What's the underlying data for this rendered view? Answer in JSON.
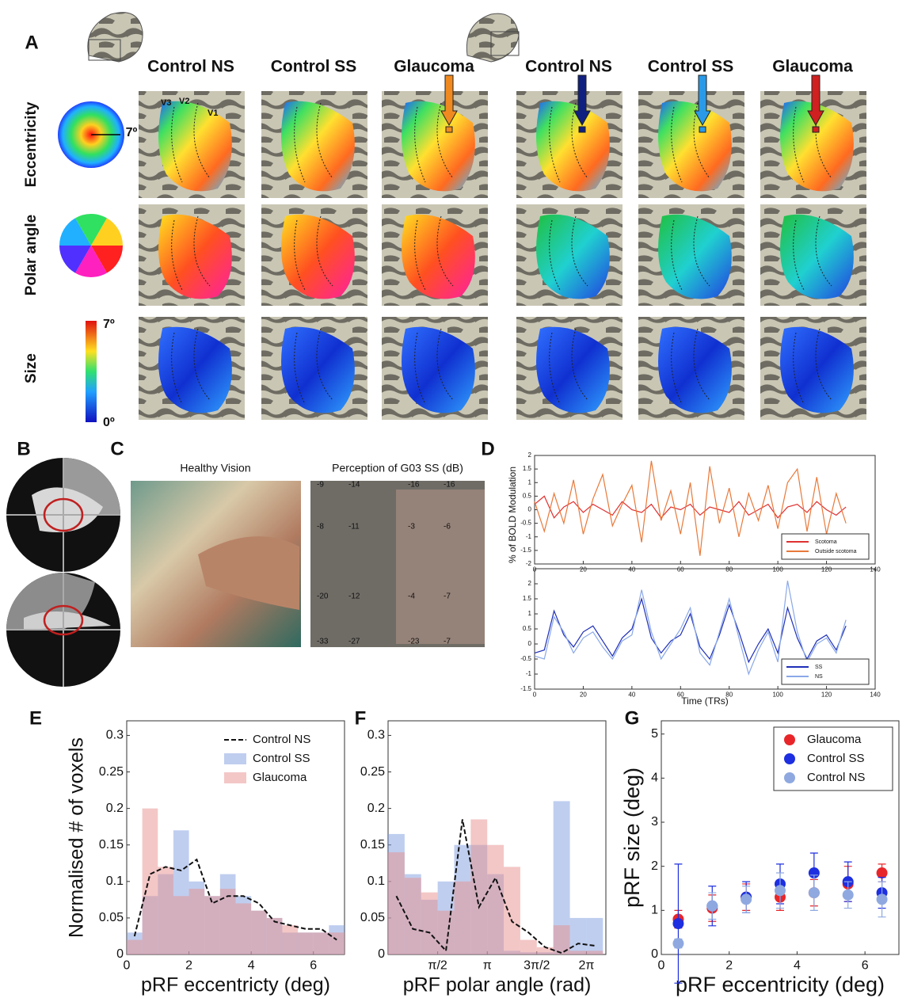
{
  "panel_labels": [
    "A",
    "B",
    "C",
    "D",
    "E",
    "F",
    "G"
  ],
  "panel_a": {
    "columns": [
      "Control NS",
      "Control SS",
      "Glaucoma",
      "Control NS",
      "Control SS",
      "Glaucoma"
    ],
    "rows": [
      "Eccentricity",
      "Polar angle",
      "Size"
    ],
    "eccentricity_max": "7º",
    "size_max": "7º",
    "size_min": "0º",
    "regions": [
      "V3",
      "V2",
      "V1"
    ]
  },
  "panel_c": {
    "titles": [
      "Healthy Vision",
      "Perception of G03 SS (dB)"
    ],
    "db_grid": [
      [
        -9,
        -14,
        -16,
        -16
      ],
      [
        -8,
        -11,
        -3,
        -6
      ],
      [
        -20,
        -12,
        -4,
        -7
      ],
      [
        -33,
        -27,
        -23,
        -7
      ]
    ]
  },
  "chart_data": [
    {
      "type": "line",
      "ylabel": "% of BOLD Modulation",
      "x": [
        0,
        4,
        8,
        12,
        16,
        20,
        24,
        28,
        32,
        36,
        40,
        44,
        48,
        52,
        56,
        60,
        64,
        68,
        72,
        76,
        80,
        84,
        88,
        92,
        96,
        100,
        104,
        108,
        112,
        116,
        120,
        124,
        128
      ],
      "series": [
        {
          "name": "Scotoma",
          "color": "#e03030",
          "values": [
            0.2,
            0.5,
            -0.3,
            0.1,
            0.3,
            -0.1,
            0.2,
            0,
            -0.2,
            0.3,
            0,
            -0.1,
            0.2,
            -0.3,
            0.1,
            0,
            0.2,
            -0.2,
            0.1,
            0,
            -0.1,
            0.3,
            -0.2,
            0,
            0.2,
            -0.3,
            0.1,
            0.2,
            -0.1,
            0.3,
            0,
            -0.2,
            0.1
          ]
        },
        {
          "name": "Outside scotoma",
          "color": "#e8793a",
          "values": [
            0.3,
            -0.8,
            0.6,
            -0.5,
            1.1,
            -0.9,
            0.4,
            1.3,
            -0.6,
            0.2,
            0.9,
            -1.2,
            1.8,
            -0.4,
            0.7,
            -0.9,
            1.0,
            -1.7,
            1.6,
            -0.5,
            0.8,
            -1.0,
            0.6,
            -0.4,
            0.9,
            -0.7,
            1.0,
            1.5,
            -0.8,
            1.2,
            -0.9,
            0.6,
            -0.5
          ]
        }
      ],
      "xlim": [
        0,
        140
      ],
      "xticks": [
        0,
        20,
        40,
        60,
        80,
        100,
        120,
        140
      ],
      "ylim": [
        -2,
        2
      ],
      "yticks": [
        -2,
        -1.5,
        -1,
        -0.5,
        0,
        0.5,
        1,
        1.5,
        2
      ],
      "legend": "lower right"
    },
    {
      "type": "line",
      "xlabel": "Time (TRs)",
      "x": [
        0,
        4,
        8,
        12,
        16,
        20,
        24,
        28,
        32,
        36,
        40,
        44,
        48,
        52,
        56,
        60,
        64,
        68,
        72,
        76,
        80,
        84,
        88,
        92,
        96,
        100,
        104,
        108,
        112,
        116,
        120,
        124,
        128
      ],
      "series": [
        {
          "name": "SS",
          "color": "#1f2fb8",
          "values": [
            -0.3,
            -0.2,
            1.1,
            0.3,
            -0.1,
            0.4,
            0.6,
            0.1,
            -0.4,
            0.2,
            0.5,
            1.5,
            0.2,
            -0.3,
            0.1,
            0.3,
            1.0,
            -0.1,
            -0.5,
            0.3,
            1.3,
            0.4,
            -0.6,
            0,
            0.5,
            -0.3,
            1.2,
            0.2,
            -0.5,
            0.1,
            0.3,
            -0.2,
            0.6
          ]
        },
        {
          "name": "NS",
          "color": "#8aa8e8",
          "values": [
            -0.4,
            -0.5,
            0.9,
            0.4,
            -0.3,
            0.2,
            0.4,
            -0.1,
            -0.5,
            0.1,
            0.3,
            1.8,
            0.4,
            -0.5,
            0,
            0.5,
            1.2,
            -0.3,
            -0.7,
            0.4,
            1.5,
            0.2,
            -1.0,
            -0.2,
            0.4,
            -0.6,
            2.1,
            0.4,
            -0.6,
            0,
            0.2,
            -0.3,
            0.8
          ]
        }
      ],
      "xlim": [
        0,
        140
      ],
      "xticks": [
        0,
        20,
        40,
        60,
        80,
        100,
        120,
        140
      ],
      "ylim": [
        -1.5,
        2.5
      ],
      "yticks": [
        -1.5,
        -1,
        -0.5,
        0,
        0.5,
        1,
        1.5,
        2
      ],
      "legend": "lower right"
    },
    {
      "type": "histogram",
      "xlabel": "pRF eccentricty (deg)",
      "ylabel": "Normalised # of voxels",
      "bins": [
        0,
        0.5,
        1,
        1.5,
        2,
        2.5,
        3,
        3.5,
        4,
        4.5,
        5,
        5.5,
        6,
        6.5,
        7
      ],
      "series": [
        {
          "name": "Control NS",
          "type": "line",
          "dashed": true,
          "color": "#111111",
          "x": [
            0.25,
            0.75,
            1.25,
            1.75,
            2.25,
            2.75,
            3.25,
            3.75,
            4.25,
            4.75,
            5.25,
            5.75,
            6.25,
            6.75
          ],
          "values": [
            0.025,
            0.11,
            0.12,
            0.115,
            0.13,
            0.07,
            0.08,
            0.08,
            0.07,
            0.045,
            0.04,
            0.035,
            0.035,
            0.02
          ]
        },
        {
          "name": "Control SS",
          "color": "#7f9ee0",
          "values": [
            0.03,
            0.08,
            0.11,
            0.17,
            0.1,
            0.08,
            0.11,
            0.08,
            0.06,
            0.05,
            0.03,
            0.03,
            0.03,
            0.04
          ]
        },
        {
          "name": "Glaucoma",
          "color": "#e8908e",
          "values": [
            0.02,
            0.2,
            0.12,
            0.08,
            0.09,
            0.08,
            0.09,
            0.07,
            0.06,
            0.05,
            0.04,
            0.03,
            0.03,
            0.03
          ]
        }
      ],
      "xlim": [
        0,
        7
      ],
      "xticks": [
        0,
        2,
        4,
        6
      ],
      "ylim": [
        0,
        0.32
      ],
      "yticks": [
        0,
        0.05,
        0.1,
        0.15,
        0.2,
        0.25,
        0.3
      ],
      "legend": "upper right"
    },
    {
      "type": "histogram",
      "xlabel": "pRF polar angle (rad)",
      "bins": [
        0,
        0.524,
        1.047,
        1.571,
        2.094,
        2.618,
        3.142,
        3.665,
        4.189,
        4.712,
        5.236,
        5.76,
        6.283,
        6.807
      ],
      "series": [
        {
          "type": "line",
          "dashed": true,
          "color": "#111111",
          "x": [
            0.262,
            0.785,
            1.309,
            1.833,
            2.356,
            2.88,
            3.403,
            3.927,
            4.451,
            4.974,
            5.498,
            6.021,
            6.545
          ],
          "values": [
            0.08,
            0.035,
            0.03,
            0.005,
            0.185,
            0.065,
            0.105,
            0.045,
            0.03,
            0.01,
            0.002,
            0.015,
            0.012
          ]
        },
        {
          "color": "#7f9ee0",
          "values": [
            0.165,
            0.11,
            0.075,
            0.1,
            0.15,
            0.15,
            0.11,
            0.005,
            0.003,
            0.003,
            0.21,
            0.05,
            0.05
          ]
        },
        {
          "color": "#e8908e",
          "values": [
            0.14,
            0.105,
            0.085,
            0.06,
            0.1,
            0.185,
            0.15,
            0.12,
            0.02,
            0.01,
            0.04,
            0.005,
            0.005
          ]
        }
      ],
      "xlim": [
        0,
        6.9
      ],
      "xticks": [
        {
          "value": 1.571,
          "label": "π/2"
        },
        {
          "value": 3.142,
          "label": "π"
        },
        {
          "value": 4.712,
          "label": "3π/2"
        },
        {
          "value": 6.283,
          "label": "2π"
        }
      ],
      "ylim": [
        0,
        0.32
      ],
      "yticks": [
        0,
        0.05,
        0.1,
        0.15,
        0.2,
        0.25,
        0.3
      ]
    },
    {
      "type": "scatter",
      "xlabel": "pRF eccentricity (deg)",
      "ylabel": "pRF size (deg)",
      "x": [
        0.5,
        1.5,
        2.5,
        3.5,
        4.5,
        5.5,
        6.5
      ],
      "series": [
        {
          "name": "Glaucoma",
          "color": "#e8262a",
          "values": [
            0.8,
            1.05,
            1.3,
            1.3,
            1.4,
            1.6,
            1.85
          ],
          "errors": [
            0.2,
            0.3,
            0.3,
            0.3,
            0.3,
            0.4,
            0.2
          ]
        },
        {
          "name": "Control SS",
          "color": "#1d2fe0",
          "values": [
            0.7,
            1.1,
            1.3,
            1.6,
            1.85,
            1.65,
            1.4
          ],
          "errors": [
            1.35,
            0.45,
            0.35,
            0.45,
            0.45,
            0.45,
            0.35
          ]
        },
        {
          "name": "Control NS",
          "color": "#8fa9e0",
          "values": [
            0.25,
            1.1,
            1.25,
            1.45,
            1.4,
            1.35,
            1.25
          ],
          "errors": [
            0.1,
            0.3,
            0.3,
            0.4,
            0.4,
            0.3,
            0.4
          ]
        }
      ],
      "xlim": [
        0,
        7
      ],
      "xticks": [
        0,
        2,
        4,
        6
      ],
      "ylim": [
        0,
        5.3
      ],
      "yticks": [
        0,
        1,
        2,
        3,
        4,
        5
      ],
      "legend": "upper right"
    }
  ]
}
